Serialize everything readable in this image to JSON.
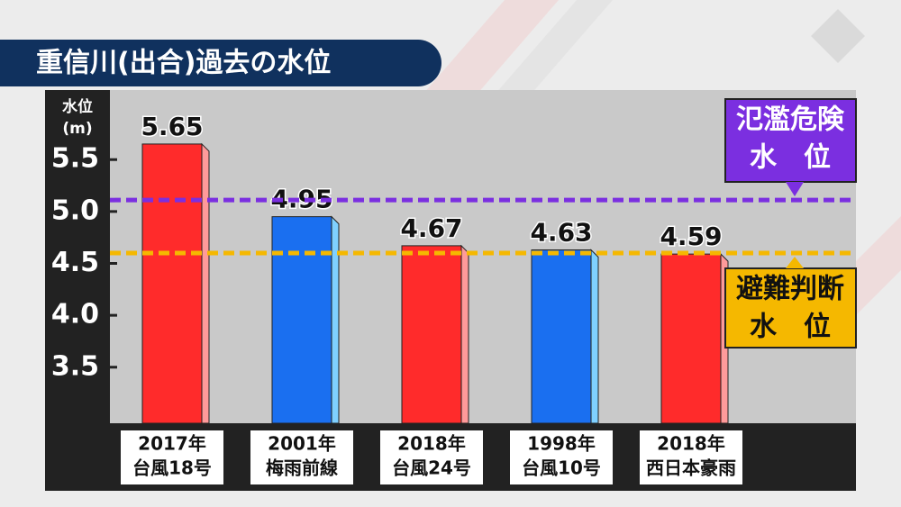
{
  "chart_data": {
    "type": "bar",
    "title": "重信川(出合)過去の水位",
    "y_label": [
      "水位",
      "(m)"
    ],
    "categories": [
      [
        "2017年",
        "台風18号"
      ],
      [
        "2001年",
        "梅雨前線"
      ],
      [
        "2018年",
        "台風24号"
      ],
      [
        "1998年",
        "台風10号"
      ],
      [
        "2018年",
        "西日本豪雨"
      ]
    ],
    "values": [
      5.65,
      4.95,
      4.67,
      4.63,
      4.59
    ],
    "colors": [
      "#ff2b2b",
      "#1a6ff0",
      "#ff2b2b",
      "#1a6ff0",
      "#ff2b2b"
    ],
    "ylim": [
      2.96,
      6.17
    ],
    "yticks": [
      3.5,
      {
        "value": 4,
        "label": "4.0"
      },
      4.5,
      {
        "value": 5,
        "label": "5.0"
      },
      5.5
    ],
    "reference_lines": [
      {
        "label": [
          "氾濫危険",
          "水　位"
        ],
        "value": 5.11,
        "color": "#7b2fe0"
      },
      {
        "label": [
          "避難判断",
          "水　位"
        ],
        "value": 4.6,
        "color": "#f5b800"
      }
    ]
  }
}
